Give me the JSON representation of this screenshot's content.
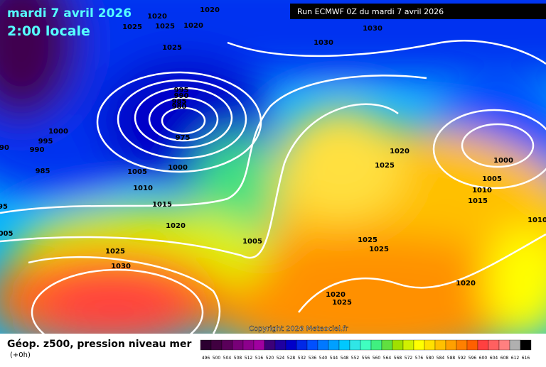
{
  "header": {
    "date": "mardi 7 avril 2026",
    "time": "2:00 locale",
    "run": "Run ECMWF 0Z du mardi 7 avril 2026"
  },
  "isobars": {
    "labels": [
      1020,
      1020,
      1025,
      1025,
      1020,
      1025,
      1030,
      1030,
      995,
      990,
      985,
      980,
      975,
      1000,
      995,
      990,
      985,
      "90",
      "95",
      "005",
      1005,
      1000,
      1010,
      1015,
      1020,
      1025,
      1030,
      1005,
      1020,
      1025,
      1000,
      1005,
      1010,
      1015,
      "1010",
      1025,
      1025,
      1020,
      1020,
      1025
    ]
  },
  "copyright": "Copyright 2026 Meteociel.fr",
  "footer": {
    "title": "Géop. z500, pression niveau mer",
    "lead": "(+0h)"
  },
  "legend": {
    "ticks": [
      496,
      500,
      504,
      508,
      512,
      516,
      520,
      524,
      528,
      532,
      536,
      540,
      544,
      548,
      552,
      556,
      560,
      564,
      568,
      572,
      576,
      580,
      584,
      588,
      592,
      596,
      600,
      604,
      608,
      612,
      616
    ],
    "colors": [
      "#2b0030",
      "#400040",
      "#5a005a",
      "#780078",
      "#8c008c",
      "#a000a0",
      "#3c0078",
      "#1e00a0",
      "#0000c8",
      "#0028e6",
      "#0050ff",
      "#0078ff",
      "#00a0ff",
      "#00c8ff",
      "#30e6e6",
      "#40ffc0",
      "#40f080",
      "#60e040",
      "#a0e000",
      "#d0f000",
      "#ffff00",
      "#ffe000",
      "#ffc000",
      "#ffa000",
      "#ff8000",
      "#ff6000",
      "#ff4040",
      "#ff6060",
      "#ff8080",
      "#b0b0b0",
      "#000000"
    ]
  }
}
